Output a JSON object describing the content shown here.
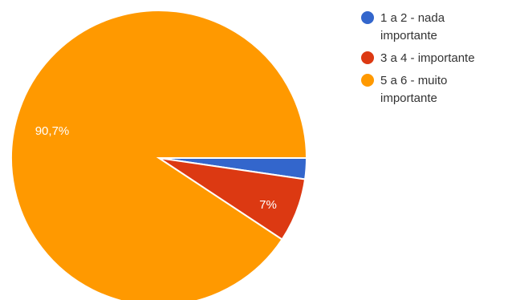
{
  "chart_data": {
    "type": "pie",
    "categories": [
      "1 a 2 - nada importante",
      "3 a 4 - importante",
      "5 a 6 - muito importante"
    ],
    "values": [
      2.3,
      7,
      90.7
    ],
    "data_labels": [
      "",
      "7%",
      "90,7%"
    ],
    "colors": [
      "#3366cc",
      "#dc3912",
      "#ff9900"
    ],
    "legend": {
      "position": "right",
      "entries": [
        {
          "lines": [
            "1 a 2 - nada",
            "importante"
          ],
          "color": "#3366cc"
        },
        {
          "lines": [
            "3 a 4 - importante"
          ],
          "color": "#dc3912"
        },
        {
          "lines": [
            "5 a 6 - muito",
            "importante"
          ],
          "color": "#ff9900"
        }
      ]
    }
  }
}
